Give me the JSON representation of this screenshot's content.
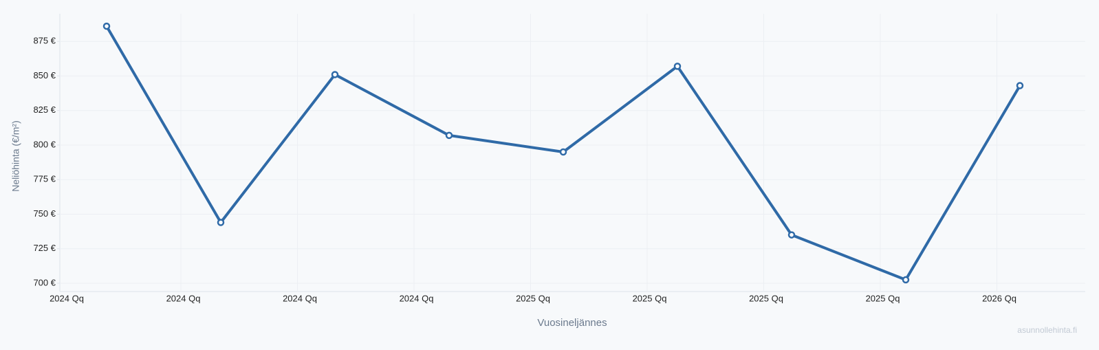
{
  "chart_data": {
    "type": "line",
    "y_label": "Neliöhinta (€/m²)",
    "x_label": "Vuosineljännes",
    "watermark": "asunnollehinta.fi",
    "categories": [
      null,
      null,
      null,
      null,
      null,
      null,
      null,
      null,
      null
    ],
    "x_tick_labels": [
      "2024 Qq",
      "2024 Qq",
      "2024 Qq",
      "2024 Qq",
      "2025 Qq",
      "2025 Qq",
      "2025 Qq",
      "2025 Qq",
      "2026 Qq"
    ],
    "series": [
      {
        "name": null,
        "color": "#2f6aa7",
        "values": [
          886,
          744,
          851,
          807,
          795,
          857,
          735,
          702.5,
          843
        ]
      }
    ],
    "ylim": [
      694,
      895
    ],
    "yticks": [
      {
        "value": 700,
        "label": "700 €"
      },
      {
        "value": 725,
        "label": "725 €"
      },
      {
        "value": 750,
        "label": "750 €"
      },
      {
        "value": 775,
        "label": "775 €"
      },
      {
        "value": 800,
        "label": "800 €"
      },
      {
        "value": 825,
        "label": "825 €"
      },
      {
        "value": 850,
        "label": "850 €"
      },
      {
        "value": 875,
        "label": "875 €"
      }
    ],
    "grid": true
  }
}
